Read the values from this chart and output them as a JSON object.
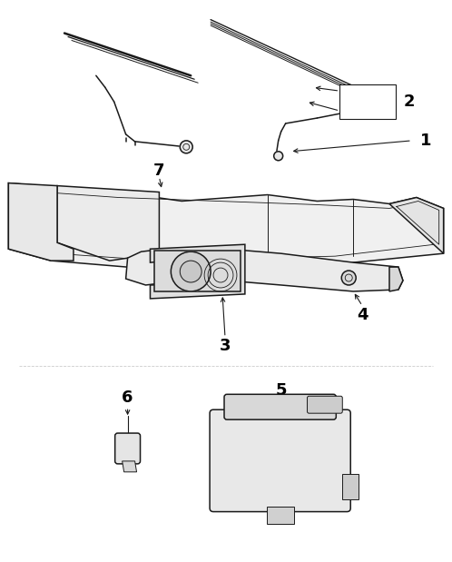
{
  "bg_color": "#ffffff",
  "line_color": "#1a1a1a",
  "label_color": "#000000",
  "fig_width": 4.98,
  "fig_height": 6.19,
  "dpi": 100
}
